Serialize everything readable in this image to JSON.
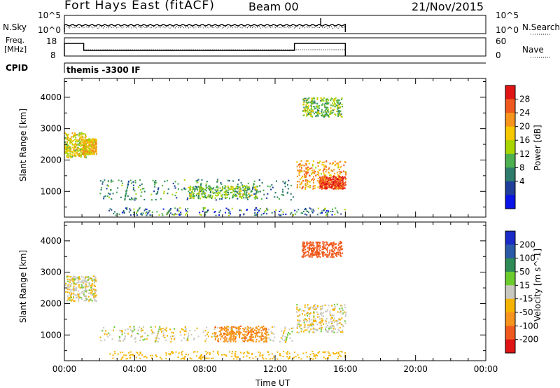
{
  "header": {
    "station": "Fort Hays East (fitACF)",
    "beam": "Beam 00",
    "date": "21/Nov/2015"
  },
  "noise_panel": {
    "left_label": "N.Sky",
    "right_label": "N.Search",
    "left_ticks": [
      "10^5",
      "10^0"
    ],
    "right_ticks": [
      "10^5",
      "10^0"
    ]
  },
  "freq_panel": {
    "left_label_line1": "Freq.",
    "left_label_line2": "[MHz]",
    "right_label": "Nave",
    "left_ticks": [
      "18",
      "8"
    ],
    "right_ticks": [
      "60",
      "0"
    ]
  },
  "cpid_panel": {
    "label": "CPID",
    "value": "themis -3300 IF"
  },
  "x_axis": {
    "label": "Time UT",
    "ticks": [
      "00:00",
      "04:00",
      "08:00",
      "12:00",
      "16:00",
      "20:00",
      "00:00"
    ]
  },
  "colors": {
    "power_scale": [
      "#0a14e6",
      "#1f3f9a",
      "#2e7d6c",
      "#4caf50",
      "#a8d400",
      "#f5c800",
      "#f7941d",
      "#f05a1e",
      "#e01414"
    ],
    "velocity_scale": [
      "#e01414",
      "#f05a1e",
      "#f7941d",
      "#f5b400",
      "#c8c8c0",
      "#6ccc2e",
      "#2e8b57",
      "#2a5aa8",
      "#1a2bc8"
    ]
  },
  "chart_data": [
    {
      "type": "heatmap",
      "title": "",
      "ylabel": "Slant Range [km]",
      "xlabel": "",
      "xlim": [
        0,
        24
      ],
      "ylim": [
        180,
        4600
      ],
      "yticks": [
        1000,
        2000,
        3000,
        4000
      ],
      "colorbar": {
        "label": "Power [dB]",
        "ticks": [
          "28",
          "24",
          "20",
          "16",
          "12",
          "8",
          "4"
        ]
      },
      "regions": [
        {
          "t_start": 0.0,
          "t_end": 1.2,
          "r_start": 2100,
          "r_end": 2900,
          "value": 18
        },
        {
          "t_start": 1.0,
          "t_end": 1.8,
          "r_start": 2200,
          "r_end": 2700,
          "value": 20
        },
        {
          "t_start": 2.0,
          "t_end": 13.0,
          "r_start": 750,
          "r_end": 1400,
          "value": 10
        },
        {
          "t_start": 7.0,
          "t_end": 11.0,
          "r_start": 800,
          "r_end": 1200,
          "value": 14
        },
        {
          "t_start": 13.2,
          "t_end": 16.0,
          "r_start": 1100,
          "r_end": 2000,
          "value": 22
        },
        {
          "t_start": 14.5,
          "t_end": 16.0,
          "r_start": 1100,
          "r_end": 1500,
          "value": 28
        },
        {
          "t_start": 13.5,
          "t_end": 15.8,
          "r_start": 3400,
          "r_end": 4000,
          "value": 14
        }
      ]
    },
    {
      "type": "heatmap",
      "title": "",
      "ylabel": "Slant Range [km]",
      "xlabel": "Time UT",
      "xlim": [
        0,
        24
      ],
      "ylim": [
        180,
        4600
      ],
      "yticks": [
        1000,
        2000,
        3000,
        4000
      ],
      "colorbar": {
        "label": "Velocity [m s^-1]",
        "ticks": [
          "200",
          "100",
          "50",
          "15",
          "-15",
          "-50",
          "-100",
          "-200"
        ]
      },
      "regions": [
        {
          "t_start": 0.0,
          "t_end": 1.8,
          "r_start": 2100,
          "r_end": 2900,
          "value": 0
        },
        {
          "t_start": 2.0,
          "t_end": 13.0,
          "r_start": 800,
          "r_end": 1300,
          "value": 0
        },
        {
          "t_start": 8.5,
          "t_end": 11.5,
          "r_start": 800,
          "r_end": 1300,
          "value": -60
        },
        {
          "t_start": 13.2,
          "t_end": 16.0,
          "r_start": 1100,
          "r_end": 2000,
          "value": 0
        },
        {
          "t_start": 13.5,
          "t_end": 15.8,
          "r_start": 3500,
          "r_end": 4000,
          "value": -120
        }
      ]
    }
  ]
}
